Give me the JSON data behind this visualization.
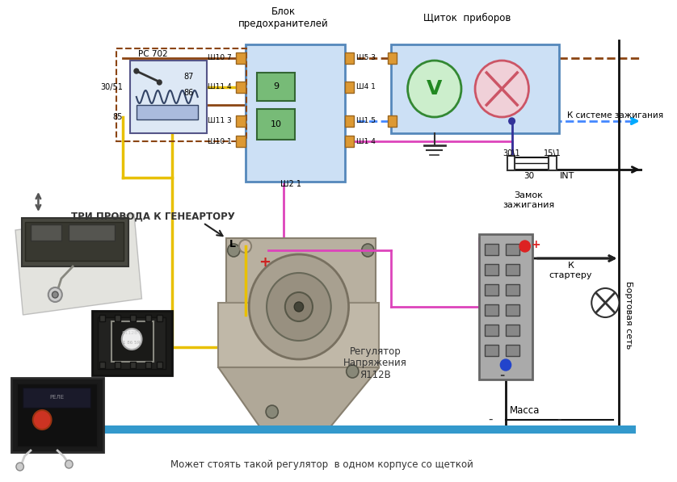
{
  "bg_color": "#ffffff",
  "fig_width": 8.38,
  "fig_height": 5.97,
  "texts": {
    "blok": "Блок\nпредохранителей",
    "schitok": "Щиток  приборов",
    "tri_provoda": "ТРИ ПРОВОДА К ГЕНЕАРТОРУ",
    "zamok": "Замок\nзажигания",
    "k_sisteme": "К системе зажигания",
    "k_starteru": "К\nстартеру",
    "bortovaya": "Бортовая сеть",
    "massa": "Масса",
    "regl": "Регулятор\nНапряжения\nЯ112В",
    "mojet": "Может стоять такой регулятор  в одном корпусе со щеткой",
    "pc702": "РС 702",
    "int_label": "INT",
    "30_label": "30",
    "15_1": "15\\1",
    "30_1": "30\\1",
    "sh107": "Ш10 7",
    "sh114": "Ш11 4",
    "sh113": "Ш11 3",
    "sh101": "Ш10 1",
    "sh53": "Ш5 3",
    "sh41": "Ш4 1",
    "sh15": "Ш1 5",
    "sh14": "Ш1 4",
    "sh21": "Ш2 1",
    "9_label": "9",
    "10_label": "10",
    "85_label": "85",
    "86_label": "86",
    "87_label": "87",
    "3051_label": "30/51",
    "L_label": "L"
  }
}
